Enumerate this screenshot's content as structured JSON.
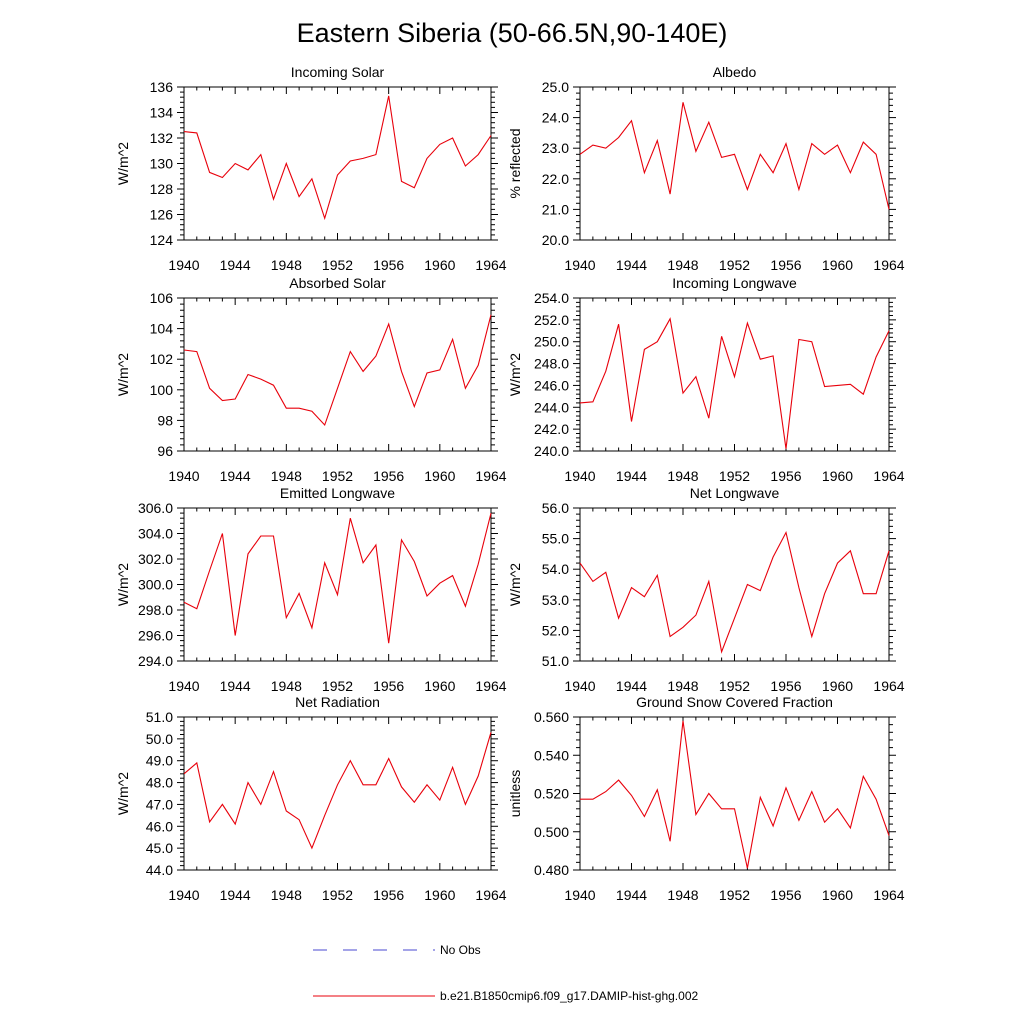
{
  "figure": {
    "title": "Eastern Siberia (50-66.5N,90-140E)"
  },
  "legend": {
    "entries": [
      {
        "label": "No Obs",
        "color": "#4a4ad0",
        "style": "dashed"
      },
      {
        "label": "b.e21.B1850cmip6.f09_g17.DAMIP-hist-ghg.002",
        "color": "#e8000b",
        "style": "solid"
      }
    ]
  },
  "colors": {
    "model": "#e8000b",
    "obs": "#4a4ad0"
  },
  "chart_data": [
    {
      "type": "line",
      "title": "Incoming Solar",
      "ylabel": "W/m^2",
      "xlim": [
        1940,
        1964
      ],
      "ylim": [
        124,
        136
      ],
      "xticks": [
        "1940",
        "1944",
        "1948",
        "1952",
        "1956",
        "1960",
        "1964"
      ],
      "yticks": [
        "124",
        "126",
        "128",
        "130",
        "132",
        "134",
        "136"
      ],
      "x": [
        1940,
        1941,
        1942,
        1943,
        1944,
        1945,
        1946,
        1947,
        1948,
        1949,
        1950,
        1951,
        1952,
        1953,
        1954,
        1955,
        1956,
        1957,
        1958,
        1959,
        1960,
        1961,
        1962,
        1963,
        1964
      ],
      "series": [
        {
          "name": "b.e21.B1850cmip6.f09_g17.DAMIP-hist-ghg.002",
          "values": [
            132.5,
            132.4,
            129.3,
            128.9,
            130.0,
            129.5,
            130.7,
            127.2,
            130.0,
            127.4,
            128.8,
            125.7,
            129.1,
            130.2,
            130.4,
            130.7,
            135.3,
            128.6,
            128.1,
            130.4,
            131.5,
            132.0,
            129.8,
            130.7,
            132.2
          ]
        }
      ]
    },
    {
      "type": "line",
      "title": "Albedo",
      "ylabel": "% reflected",
      "xlim": [
        1940,
        1964
      ],
      "ylim": [
        20.0,
        25.0
      ],
      "xticks": [
        "1940",
        "1944",
        "1948",
        "1952",
        "1956",
        "1960",
        "1964"
      ],
      "yticks": [
        "20.0",
        "21.0",
        "22.0",
        "23.0",
        "24.0",
        "25.0"
      ],
      "x": [
        1940,
        1941,
        1942,
        1943,
        1944,
        1945,
        1946,
        1947,
        1948,
        1949,
        1950,
        1951,
        1952,
        1953,
        1954,
        1955,
        1956,
        1957,
        1958,
        1959,
        1960,
        1961,
        1962,
        1963,
        1964
      ],
      "series": [
        {
          "name": "b.e21.B1850cmip6.f09_g17.DAMIP-hist-ghg.002",
          "values": [
            22.8,
            23.1,
            23.0,
            23.35,
            23.9,
            22.2,
            23.25,
            21.5,
            24.5,
            22.9,
            23.85,
            22.7,
            22.8,
            21.65,
            22.8,
            22.2,
            23.15,
            21.65,
            23.15,
            22.8,
            23.1,
            22.2,
            23.2,
            22.8,
            21.0
          ]
        }
      ]
    },
    {
      "type": "line",
      "title": "Absorbed Solar",
      "ylabel": "W/m^2",
      "xlim": [
        1940,
        1964
      ],
      "ylim": [
        96,
        106
      ],
      "xticks": [
        "1940",
        "1944",
        "1948",
        "1952",
        "1956",
        "1960",
        "1964"
      ],
      "yticks": [
        "96",
        "98",
        "100",
        "102",
        "104",
        "106"
      ],
      "x": [
        1940,
        1941,
        1942,
        1943,
        1944,
        1945,
        1946,
        1947,
        1948,
        1949,
        1950,
        1951,
        1952,
        1953,
        1954,
        1955,
        1956,
        1957,
        1958,
        1959,
        1960,
        1961,
        1962,
        1963,
        1964
      ],
      "series": [
        {
          "name": "b.e21.B1850cmip6.f09_g17.DAMIP-hist-ghg.002",
          "values": [
            102.6,
            102.5,
            100.1,
            99.3,
            99.4,
            101.0,
            100.7,
            100.3,
            98.8,
            98.8,
            98.6,
            97.7,
            100.1,
            102.5,
            101.2,
            102.2,
            104.3,
            101.2,
            98.9,
            101.1,
            101.3,
            103.3,
            100.1,
            101.6,
            104.9
          ]
        }
      ]
    },
    {
      "type": "line",
      "title": "Incoming Longwave",
      "ylabel": "W/m^2",
      "xlim": [
        1940,
        1964
      ],
      "ylim": [
        240.0,
        254.0
      ],
      "xticks": [
        "1940",
        "1944",
        "1948",
        "1952",
        "1956",
        "1960",
        "1964"
      ],
      "yticks": [
        "240.0",
        "242.0",
        "244.0",
        "246.0",
        "248.0",
        "250.0",
        "252.0",
        "254.0"
      ],
      "x": [
        1940,
        1941,
        1942,
        1943,
        1944,
        1945,
        1946,
        1947,
        1948,
        1949,
        1950,
        1951,
        1952,
        1953,
        1954,
        1955,
        1956,
        1957,
        1958,
        1959,
        1960,
        1961,
        1962,
        1963,
        1964
      ],
      "series": [
        {
          "name": "b.e21.B1850cmip6.f09_g17.DAMIP-hist-ghg.002",
          "values": [
            244.4,
            244.5,
            247.3,
            251.6,
            242.7,
            249.3,
            250.0,
            252.1,
            245.3,
            246.8,
            243.0,
            250.5,
            246.8,
            251.7,
            248.4,
            248.7,
            240.2,
            250.2,
            250.0,
            245.9,
            246.0,
            246.1,
            245.2,
            248.6,
            251.0
          ]
        }
      ]
    },
    {
      "type": "line",
      "title": "Emitted Longwave",
      "ylabel": "W/m^2",
      "xlim": [
        1940,
        1964
      ],
      "ylim": [
        294.0,
        306.0
      ],
      "xticks": [
        "1940",
        "1944",
        "1948",
        "1952",
        "1956",
        "1960",
        "1964"
      ],
      "yticks": [
        "294.0",
        "296.0",
        "298.0",
        "300.0",
        "302.0",
        "304.0",
        "306.0"
      ],
      "x": [
        1940,
        1941,
        1942,
        1943,
        1944,
        1945,
        1946,
        1947,
        1948,
        1949,
        1950,
        1951,
        1952,
        1953,
        1954,
        1955,
        1956,
        1957,
        1958,
        1959,
        1960,
        1961,
        1962,
        1963,
        1964
      ],
      "series": [
        {
          "name": "b.e21.B1850cmip6.f09_g17.DAMIP-hist-ghg.002",
          "values": [
            298.6,
            298.1,
            301.1,
            304.0,
            296.0,
            302.4,
            303.8,
            303.8,
            297.4,
            299.3,
            296.6,
            301.7,
            299.2,
            305.2,
            301.7,
            303.1,
            295.4,
            303.5,
            301.8,
            299.1,
            300.1,
            300.7,
            298.3,
            301.6,
            305.6
          ]
        }
      ]
    },
    {
      "type": "line",
      "title": "Net Longwave",
      "ylabel": "W/m^2",
      "xlim": [
        1940,
        1964
      ],
      "ylim": [
        51.0,
        56.0
      ],
      "xticks": [
        "1940",
        "1944",
        "1948",
        "1952",
        "1956",
        "1960",
        "1964"
      ],
      "yticks": [
        "51.0",
        "52.0",
        "53.0",
        "54.0",
        "55.0",
        "56.0"
      ],
      "x": [
        1940,
        1941,
        1942,
        1943,
        1944,
        1945,
        1946,
        1947,
        1948,
        1949,
        1950,
        1951,
        1952,
        1953,
        1954,
        1955,
        1956,
        1957,
        1958,
        1959,
        1960,
        1961,
        1962,
        1963,
        1964
      ],
      "series": [
        {
          "name": "b.e21.B1850cmip6.f09_g17.DAMIP-hist-ghg.002",
          "values": [
            54.2,
            53.6,
            53.9,
            52.4,
            53.4,
            53.1,
            53.8,
            51.8,
            52.1,
            52.5,
            53.6,
            51.3,
            52.4,
            53.5,
            53.3,
            54.4,
            55.2,
            53.4,
            51.8,
            53.2,
            54.2,
            54.6,
            53.2,
            53.2,
            54.6
          ]
        }
      ]
    },
    {
      "type": "line",
      "title": "Net Radiation",
      "ylabel": "W/m^2",
      "xlim": [
        1940,
        1964
      ],
      "ylim": [
        44.0,
        51.0
      ],
      "xticks": [
        "1940",
        "1944",
        "1948",
        "1952",
        "1956",
        "1960",
        "1964"
      ],
      "yticks": [
        "44.0",
        "45.0",
        "46.0",
        "47.0",
        "48.0",
        "49.0",
        "50.0",
        "51.0"
      ],
      "x": [
        1940,
        1941,
        1942,
        1943,
        1944,
        1945,
        1946,
        1947,
        1948,
        1949,
        1950,
        1951,
        1952,
        1953,
        1954,
        1955,
        1956,
        1957,
        1958,
        1959,
        1960,
        1961,
        1962,
        1963,
        1964
      ],
      "series": [
        {
          "name": "b.e21.B1850cmip6.f09_g17.DAMIP-hist-ghg.002",
          "values": [
            48.4,
            48.9,
            46.2,
            47.0,
            46.1,
            48.0,
            47.0,
            48.5,
            46.7,
            46.3,
            45.0,
            46.5,
            47.9,
            49.0,
            47.9,
            47.9,
            49.1,
            47.8,
            47.1,
            47.9,
            47.2,
            48.7,
            47.0,
            48.3,
            50.3
          ]
        }
      ]
    },
    {
      "type": "line",
      "title": "Ground Snow Covered Fraction",
      "ylabel": "unitless",
      "xlim": [
        1940,
        1964
      ],
      "ylim": [
        0.48,
        0.56
      ],
      "xticks": [
        "1940",
        "1944",
        "1948",
        "1952",
        "1956",
        "1960",
        "1964"
      ],
      "yticks": [
        "0.480",
        "0.500",
        "0.520",
        "0.540",
        "0.560"
      ],
      "x": [
        1940,
        1941,
        1942,
        1943,
        1944,
        1945,
        1946,
        1947,
        1948,
        1949,
        1950,
        1951,
        1952,
        1953,
        1954,
        1955,
        1956,
        1957,
        1958,
        1959,
        1960,
        1961,
        1962,
        1963,
        1964
      ],
      "series": [
        {
          "name": "b.e21.B1850cmip6.f09_g17.DAMIP-hist-ghg.002",
          "values": [
            0.517,
            0.517,
            0.521,
            0.527,
            0.519,
            0.508,
            0.522,
            0.495,
            0.558,
            0.509,
            0.52,
            0.512,
            0.512,
            0.481,
            0.518,
            0.503,
            0.523,
            0.506,
            0.521,
            0.505,
            0.512,
            0.502,
            0.529,
            0.517,
            0.498
          ]
        }
      ]
    }
  ]
}
